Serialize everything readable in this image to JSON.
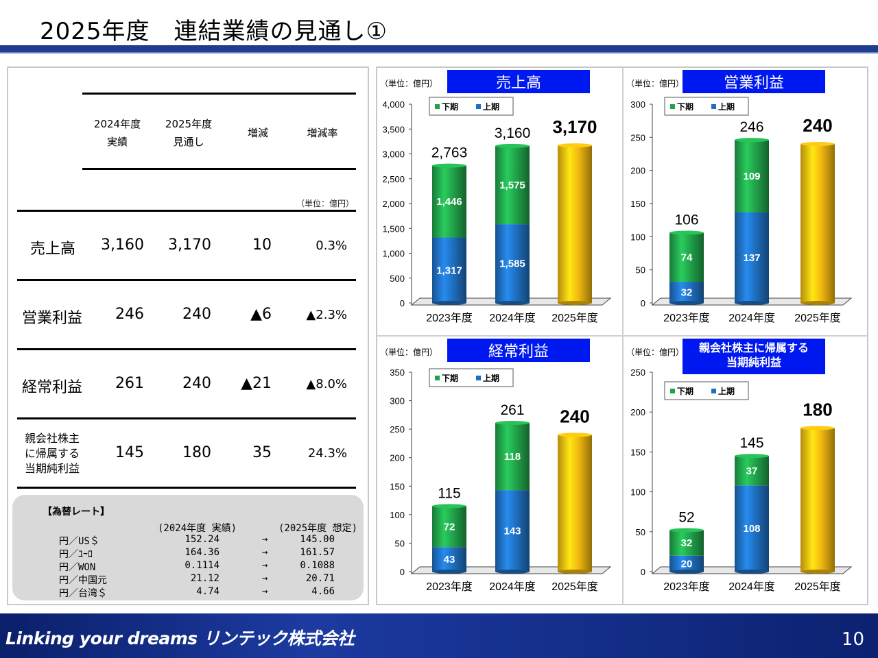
{
  "page": {
    "title": "2025年度　連結業績の見通し①",
    "footer_brand": "Linking your dreams リンテック株式会社",
    "page_number": "10"
  },
  "table": {
    "headers": {
      "col1": "2024年度\n実績",
      "col2": "2025年度\n見通し",
      "col3": "増減",
      "col4": "増減率"
    },
    "unit": "（単位：億円）",
    "rows": [
      {
        "label": "売上高",
        "v2024": "3,160",
        "v2025": "3,170",
        "diff": "10",
        "rate": "0.3%"
      },
      {
        "label": "営業利益",
        "v2024": "246",
        "v2025": "240",
        "diff": "▲6",
        "rate": "▲2.3%"
      },
      {
        "label": "経常利益",
        "v2024": "261",
        "v2025": "240",
        "diff": "▲21",
        "rate": "▲8.0%"
      },
      {
        "label": "親会社株主\nに帰属する\n当期純利益",
        "v2024": "145",
        "v2025": "180",
        "diff": "35",
        "rate": "24.3%"
      }
    ]
  },
  "fx": {
    "title": "【為替レート】",
    "hdr_actual": "(2024年度 実績)",
    "hdr_forecast": "(2025年度 想定)",
    "rows": [
      {
        "pair": "円／US＄",
        "actual": "152.24",
        "arrow": "→",
        "forecast": "145.00"
      },
      {
        "pair": "円／ﾕｰﾛ",
        "actual": "164.36",
        "arrow": "→",
        "forecast": "161.57"
      },
      {
        "pair": "円／WON",
        "actual": "0.1114",
        "arrow": "→",
        "forecast": "0.1088"
      },
      {
        "pair": "円／中国元",
        "actual": "21.12",
        "arrow": "→",
        "forecast": "20.71"
      },
      {
        "pair": "円／台湾＄",
        "actual": "4.74",
        "arrow": "→",
        "forecast": "4.66"
      }
    ]
  },
  "chart_data": [
    {
      "type": "bar",
      "title": "売上高",
      "unit": "（単位：億円）",
      "categories": [
        "2023年度",
        "2024年度",
        "2025年度"
      ],
      "series": [
        {
          "name": "上期",
          "values": [
            1317,
            1585,
            null
          ]
        },
        {
          "name": "下期",
          "values": [
            1446,
            1575,
            null
          ]
        }
      ],
      "totals": [
        2763,
        3160,
        3170
      ],
      "total_labels": [
        "2,763",
        "3,160",
        "3,170"
      ],
      "segment_labels": {
        "上期": [
          "1,317",
          "1,585",
          ""
        ],
        "下期": [
          "1,446",
          "1,575",
          ""
        ]
      },
      "ylim": [
        0,
        4000
      ],
      "yticks": [
        0,
        500,
        1000,
        1500,
        2000,
        2500,
        3000,
        3500,
        4000
      ],
      "ytick_labels": [
        "0",
        "500",
        "1,000",
        "1,500",
        "2,000",
        "2,500",
        "3,000",
        "3,500",
        "4,000"
      ],
      "legend": [
        "下期",
        "上期"
      ],
      "legend_position": "top-left",
      "colors": {
        "上期": "#1f6fc0",
        "下期": "#21a34a",
        "forecast": "#f2b90f"
      }
    },
    {
      "type": "bar",
      "title": "営業利益",
      "unit": "（単位：億円）",
      "categories": [
        "2023年度",
        "2024年度",
        "2025年度"
      ],
      "series": [
        {
          "name": "上期",
          "values": [
            32,
            137,
            null
          ]
        },
        {
          "name": "下期",
          "values": [
            74,
            109,
            null
          ]
        }
      ],
      "totals": [
        106,
        246,
        240
      ],
      "total_labels": [
        "106",
        "246",
        "240"
      ],
      "segment_labels": {
        "上期": [
          "32",
          "137",
          ""
        ],
        "下期": [
          "74",
          "109",
          ""
        ]
      },
      "ylim": [
        0,
        300
      ],
      "yticks": [
        0,
        50,
        100,
        150,
        200,
        250,
        300
      ],
      "ytick_labels": [
        "0",
        "50",
        "100",
        "150",
        "200",
        "250",
        "300"
      ],
      "legend": [
        "下期",
        "上期"
      ],
      "legend_position": "top-left",
      "colors": {
        "上期": "#1f6fc0",
        "下期": "#21a34a",
        "forecast": "#f2b90f"
      }
    },
    {
      "type": "bar",
      "title": "経常利益",
      "unit": "（単位：億円）",
      "categories": [
        "2023年度",
        "2024年度",
        "2025年度"
      ],
      "series": [
        {
          "name": "上期",
          "values": [
            43,
            143,
            null
          ]
        },
        {
          "name": "下期",
          "values": [
            72,
            118,
            null
          ]
        }
      ],
      "totals": [
        115,
        261,
        240
      ],
      "total_labels": [
        "115",
        "261",
        "240"
      ],
      "segment_labels": {
        "上期": [
          "43",
          "143",
          ""
        ],
        "下期": [
          "72",
          "118",
          ""
        ]
      },
      "ylim": [
        0,
        350
      ],
      "yticks": [
        0,
        50,
        100,
        150,
        200,
        250,
        300,
        350
      ],
      "ytick_labels": [
        "0",
        "50",
        "100",
        "150",
        "200",
        "250",
        "300",
        "350"
      ],
      "legend": [
        "下期",
        "上期"
      ],
      "legend_position": "top-left",
      "colors": {
        "上期": "#1f6fc0",
        "下期": "#21a34a",
        "forecast": "#f2b90f"
      }
    },
    {
      "type": "bar",
      "title": "親会社株主に帰属する\n当期純利益",
      "unit": "（単位：億円）",
      "categories": [
        "2023年度",
        "2024年度",
        "2025年度"
      ],
      "series": [
        {
          "name": "上期",
          "values": [
            20,
            108,
            null
          ]
        },
        {
          "name": "下期",
          "values": [
            32,
            37,
            null
          ]
        }
      ],
      "totals": [
        52,
        145,
        180
      ],
      "total_labels": [
        "52",
        "145",
        "180"
      ],
      "segment_labels": {
        "上期": [
          "20",
          "108",
          ""
        ],
        "下期": [
          "32",
          "37",
          ""
        ]
      },
      "ylim": [
        0,
        250
      ],
      "yticks": [
        0,
        50,
        100,
        150,
        200,
        250
      ],
      "ytick_labels": [
        "0",
        "50",
        "100",
        "150",
        "200",
        "250"
      ],
      "legend": [
        "下期",
        "上期"
      ],
      "legend_position": "top-left",
      "colors": {
        "上期": "#1f6fc0",
        "下期": "#21a34a",
        "forecast": "#f2b90f"
      }
    }
  ]
}
